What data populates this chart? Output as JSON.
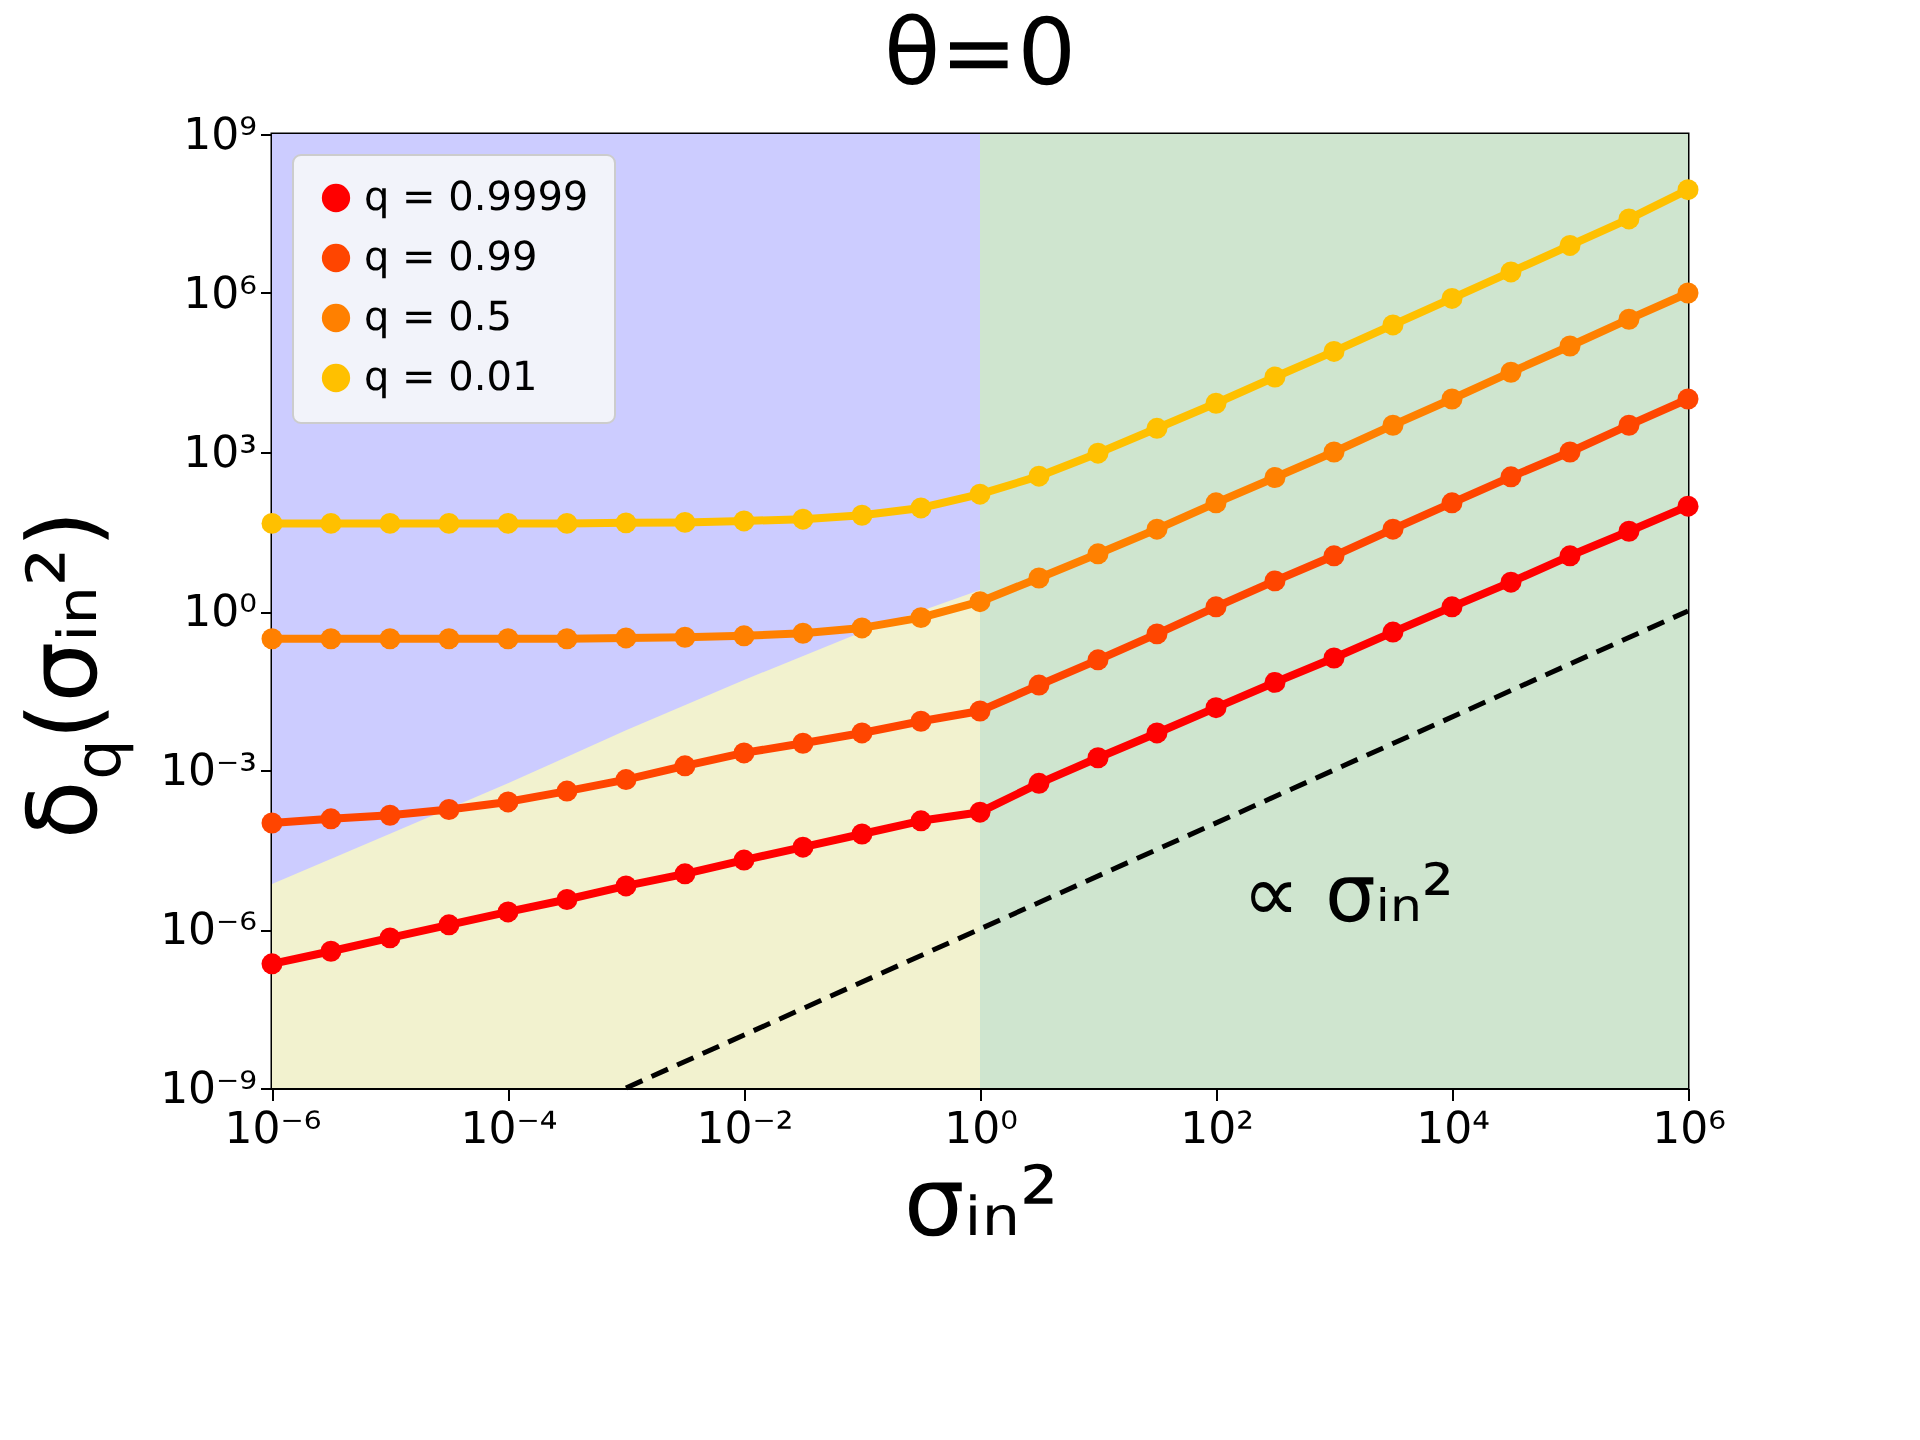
{
  "chart_data": {
    "type": "line",
    "title": "θ=0",
    "xlabel": "σᵢₙ²",
    "ylabel": "δ$_{q}$(σᵢₙ²)",
    "log": "xy",
    "legend": "top left",
    "xlim": [
      1e-06,
      1000000.0
    ],
    "ylim": [
      1e-09,
      1000000000.0
    ],
    "xticks": [
      {
        "value": 1e-06,
        "label": "10⁻⁶"
      },
      {
        "value": 0.0001,
        "label": "10⁻⁴"
      },
      {
        "value": 0.01,
        "label": "10⁻²"
      },
      {
        "value": 1,
        "label": "10⁰"
      },
      {
        "value": 100.0,
        "label": "10²"
      },
      {
        "value": 10000.0,
        "label": "10⁴"
      },
      {
        "value": 1000000.0,
        "label": "10⁶"
      }
    ],
    "yticks": [
      {
        "value": 1e-09,
        "label": "10⁻⁹"
      },
      {
        "value": 1e-06,
        "label": "10⁻⁶"
      },
      {
        "value": 0.001,
        "label": "10⁻³"
      },
      {
        "value": 1,
        "label": "10⁰"
      },
      {
        "value": 1000.0,
        "label": "10³"
      },
      {
        "value": 1000000.0,
        "label": "10⁶"
      },
      {
        "value": 1000000000.0,
        "label": "10⁹"
      }
    ],
    "bands": [
      {
        "axis": "x",
        "from": 1e-06,
        "to": 1,
        "color": "#ccccff"
      },
      {
        "axis": "x",
        "from": 1,
        "to": 1000000.0,
        "color": "#cfe5cf"
      }
    ],
    "x": [
      1e-06,
      3.16e-06,
      1e-05,
      3.16e-05,
      0.0001,
      0.000316,
      0.001,
      0.00316,
      0.01,
      0.0316,
      0.1,
      0.316,
      1,
      3.16,
      10,
      31.6,
      100,
      316,
      1000,
      3160,
      10000,
      31600,
      100000,
      316000,
      1000000
    ],
    "series": [
      {
        "type": "area",
        "color": "#f2f2cf",
        "marker": "none",
        "x": [
          1e-06,
          1e-05,
          0.0001,
          0.001,
          0.01,
          0.1,
          1
        ],
        "values": [
          7.1e-06,
          6.3e-05,
          0.00056,
          0.0056,
          0.05,
          0.4,
          2.5
        ]
      },
      {
        "type": "line",
        "color": "#000000",
        "marker": "none",
        "line_style": "dashed",
        "x": [
          0.001,
          1000000
        ],
        "values": [
          1e-09,
          1
        ]
      },
      {
        "name": "q = 0.9999",
        "color": "#ff0000",
        "marker": "circle",
        "line_style": "solid",
        "values": [
          2.2e-07,
          3.8e-07,
          6.8e-07,
          1.2e-06,
          2.1e-06,
          3.6e-06,
          6.5e-06,
          1.1e-05,
          2e-05,
          3.5e-05,
          6.2e-05,
          0.00011,
          0.00016,
          0.00056,
          0.0017,
          0.005,
          0.015,
          0.045,
          0.13,
          0.4,
          1.2,
          3.5,
          11,
          32,
          95
        ]
      },
      {
        "name": "q = 0.99",
        "color": "#ff4500",
        "marker": "circle",
        "line_style": "solid",
        "values": [
          0.0001,
          0.00012,
          0.00014,
          0.00018,
          0.00025,
          0.0004,
          0.00066,
          0.0012,
          0.0021,
          0.0032,
          0.005,
          0.0083,
          0.013,
          0.04,
          0.12,
          0.37,
          1.2,
          3.7,
          11,
          35,
          110,
          340,
          1000,
          3200,
          10000
        ]
      },
      {
        "name": "q = 0.5",
        "color": "#ff8000",
        "marker": "circle",
        "line_style": "solid",
        "values": [
          0.3,
          0.3,
          0.3,
          0.3,
          0.3,
          0.3,
          0.31,
          0.32,
          0.34,
          0.38,
          0.48,
          0.75,
          1.5,
          4.2,
          12,
          35,
          110,
          330,
          1000,
          3200,
          10000,
          32000,
          100000,
          320000,
          1000000
        ]
      },
      {
        "name": "q = 0.01",
        "color": "#ffc000",
        "marker": "circle",
        "line_style": "solid",
        "values": [
          45,
          45,
          45,
          45,
          45,
          45,
          46,
          47,
          50,
          54,
          64,
          88,
          160,
          350,
          950,
          2800,
          8300,
          26000,
          79000,
          250000,
          790000,
          2500000,
          7900000,
          25000000,
          89000000
        ]
      }
    ],
    "annotations": [
      "∝ σᵢₙ²"
    ]
  }
}
